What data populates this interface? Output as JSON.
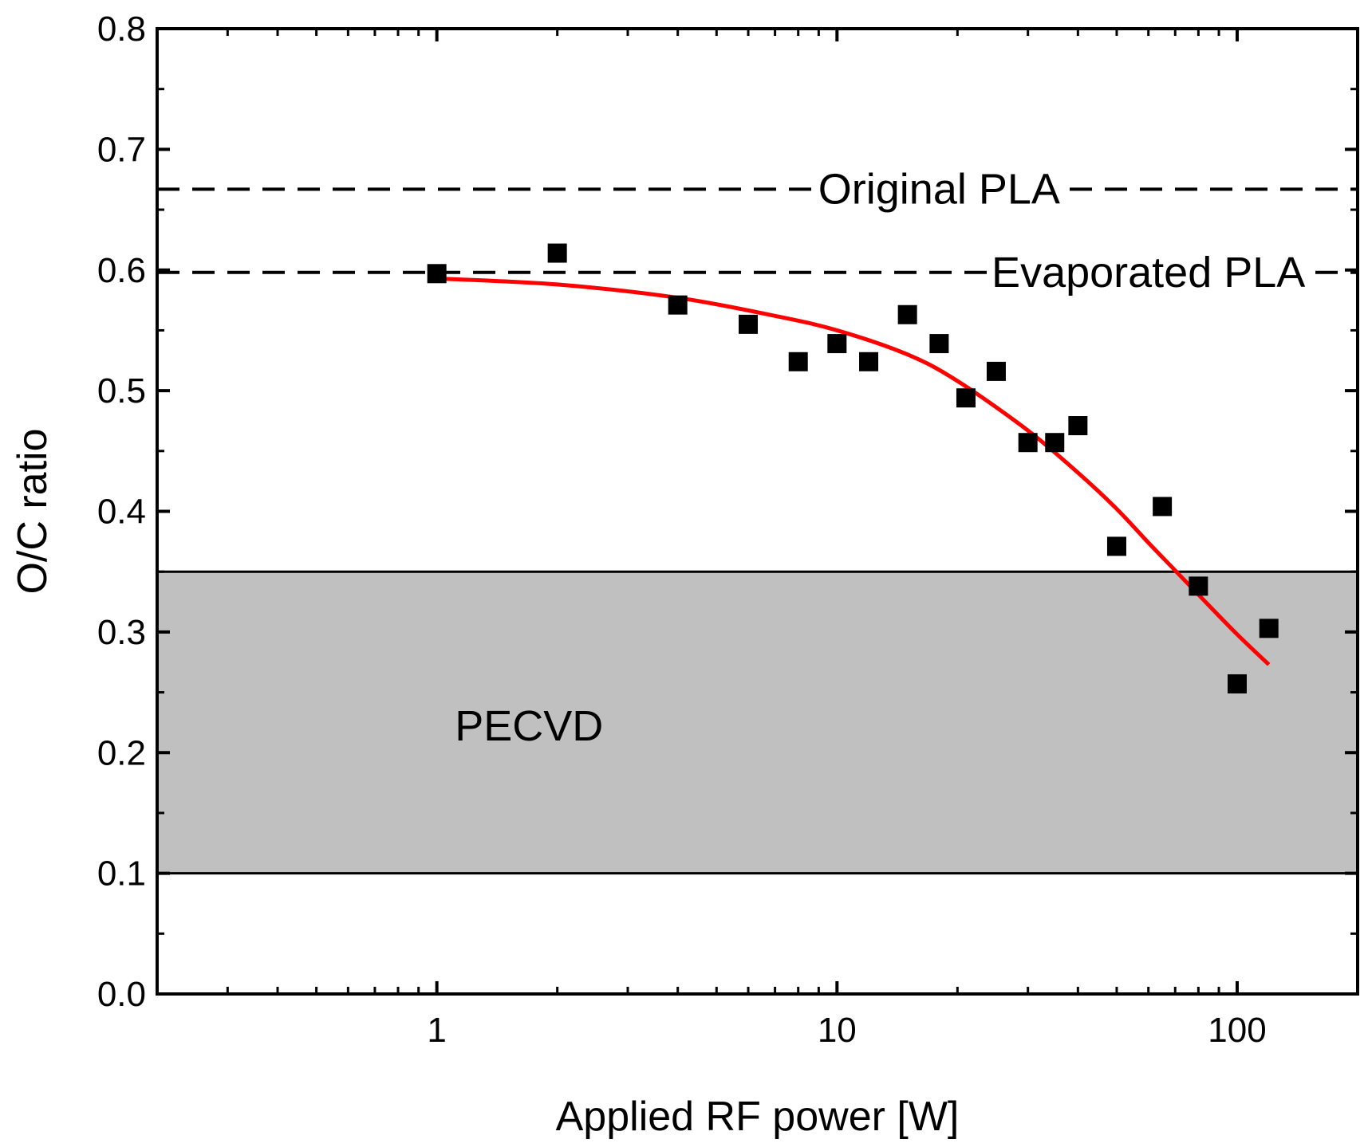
{
  "chart_data": {
    "type": "scatter",
    "xlabel": "Applied RF power [W]",
    "ylabel": "O/C ratio",
    "x_scale": "log",
    "xlim": [
      0.2,
      200
    ],
    "ylim": [
      0.0,
      0.8
    ],
    "x_ticks": [
      {
        "value": 1,
        "label": "1"
      },
      {
        "value": 10,
        "label": "10"
      },
      {
        "value": 100,
        "label": "100"
      }
    ],
    "y_ticks": [
      {
        "value": 0.0,
        "label": "0.0"
      },
      {
        "value": 0.1,
        "label": "0.1"
      },
      {
        "value": 0.2,
        "label": "0.2"
      },
      {
        "value": 0.3,
        "label": "0.3"
      },
      {
        "value": 0.4,
        "label": "0.4"
      },
      {
        "value": 0.5,
        "label": "0.5"
      },
      {
        "value": 0.6,
        "label": "0.6"
      },
      {
        "value": 0.7,
        "label": "0.7"
      },
      {
        "value": 0.8,
        "label": "0.8"
      }
    ],
    "grid": false,
    "points": [
      {
        "x": 1,
        "y": 0.597
      },
      {
        "x": 2,
        "y": 0.614
      },
      {
        "x": 4,
        "y": 0.571
      },
      {
        "x": 6,
        "y": 0.555
      },
      {
        "x": 8,
        "y": 0.524
      },
      {
        "x": 10,
        "y": 0.539
      },
      {
        "x": 12,
        "y": 0.524
      },
      {
        "x": 15,
        "y": 0.563
      },
      {
        "x": 18,
        "y": 0.539
      },
      {
        "x": 21,
        "y": 0.494
      },
      {
        "x": 25,
        "y": 0.516
      },
      {
        "x": 30,
        "y": 0.457
      },
      {
        "x": 35,
        "y": 0.457
      },
      {
        "x": 40,
        "y": 0.471
      },
      {
        "x": 50,
        "y": 0.371
      },
      {
        "x": 65,
        "y": 0.404
      },
      {
        "x": 80,
        "y": 0.338
      },
      {
        "x": 100,
        "y": 0.257
      },
      {
        "x": 120,
        "y": 0.303
      }
    ],
    "fit_curve": {
      "color": "#ff0000",
      "points": [
        {
          "x": 1,
          "y": 0.593
        },
        {
          "x": 2,
          "y": 0.588
        },
        {
          "x": 4,
          "y": 0.577
        },
        {
          "x": 7,
          "y": 0.562
        },
        {
          "x": 10,
          "y": 0.55
        },
        {
          "x": 15,
          "y": 0.53
        },
        {
          "x": 20,
          "y": 0.508
        },
        {
          "x": 30,
          "y": 0.467
        },
        {
          "x": 40,
          "y": 0.432
        },
        {
          "x": 50,
          "y": 0.402
        },
        {
          "x": 60,
          "y": 0.374
        },
        {
          "x": 70,
          "y": 0.351
        },
        {
          "x": 80,
          "y": 0.331
        },
        {
          "x": 100,
          "y": 0.298
        },
        {
          "x": 120,
          "y": 0.273
        }
      ]
    },
    "reference_lines": [
      {
        "label": "Original PLA",
        "y": 0.667,
        "style": "dashed",
        "label_x": 18
      },
      {
        "label": "Evaporated PLA",
        "y": 0.598,
        "style": "dashed",
        "label_x": 60
      }
    ],
    "band": {
      "label": "PECVD",
      "y_min": 0.1,
      "y_max": 0.35,
      "color": "#c0c0c0",
      "label_x": 1.7,
      "label_y": 0.21
    }
  }
}
